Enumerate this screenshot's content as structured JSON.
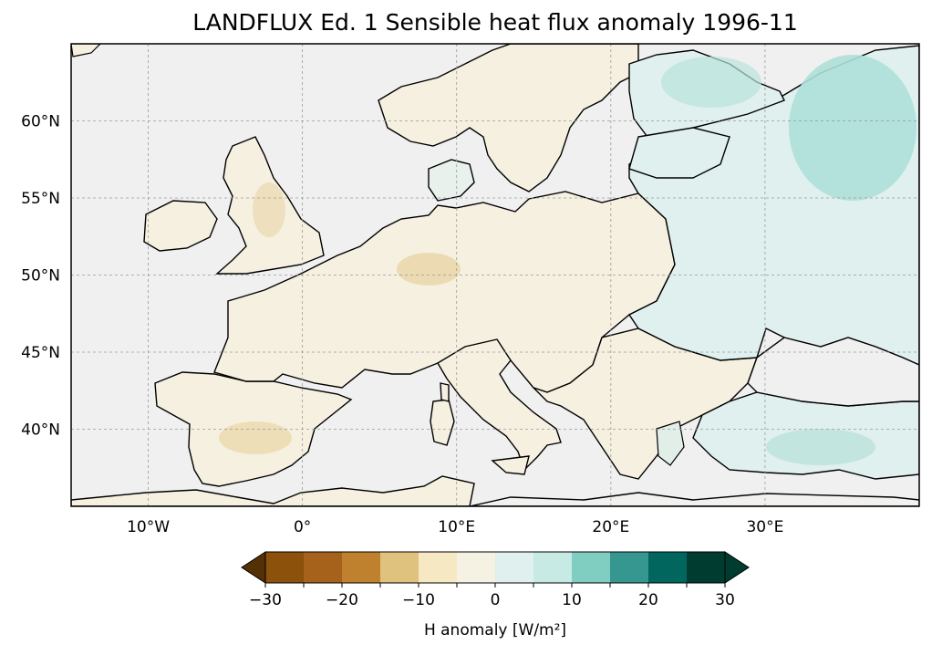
{
  "title": "LANDFLUX Ed. 1 Sensible heat flux anomaly 1996-11",
  "map": {
    "extent": {
      "lon": [
        -15,
        40
      ],
      "lat": [
        35,
        65
      ]
    },
    "ocean_color": "#f0f0f0",
    "coastline_color": "#000000",
    "gridlines": true,
    "lon_ticks": [
      {
        "value": -10,
        "label": "10°W"
      },
      {
        "value": 0,
        "label": "0°"
      },
      {
        "value": 10,
        "label": "10°E"
      },
      {
        "value": 20,
        "label": "20°E"
      },
      {
        "value": 30,
        "label": "30°E"
      }
    ],
    "lat_ticks": [
      {
        "value": 60,
        "label": "60°N"
      },
      {
        "value": 55,
        "label": "55°N"
      },
      {
        "value": 50,
        "label": "50°N"
      },
      {
        "value": 45,
        "label": "45°N"
      },
      {
        "value": 40,
        "label": "40°N"
      }
    ]
  },
  "colorbar": {
    "label": "H anomaly [W/m²]",
    "extend": "both",
    "bounds": [
      -30,
      -25,
      -20,
      -15,
      -10,
      -5,
      0,
      5,
      10,
      15,
      20,
      25,
      30
    ],
    "colors": [
      "#8c510a",
      "#a6611a",
      "#bf812d",
      "#dfc27d",
      "#f6e8c3",
      "#f5f2e3",
      "#dff0ee",
      "#c7eae5",
      "#80cdc1",
      "#35978f",
      "#01665e",
      "#003c30"
    ],
    "under_color": "#543005",
    "over_color": "#003c30",
    "tick_labels": [
      {
        "value": -30,
        "label": "−30"
      },
      {
        "value": -20,
        "label": "−20"
      },
      {
        "value": -10,
        "label": "−10"
      },
      {
        "value": 0,
        "label": "0"
      },
      {
        "value": 10,
        "label": "10"
      },
      {
        "value": 20,
        "label": "20"
      },
      {
        "value": 30,
        "label": "30"
      }
    ]
  }
}
